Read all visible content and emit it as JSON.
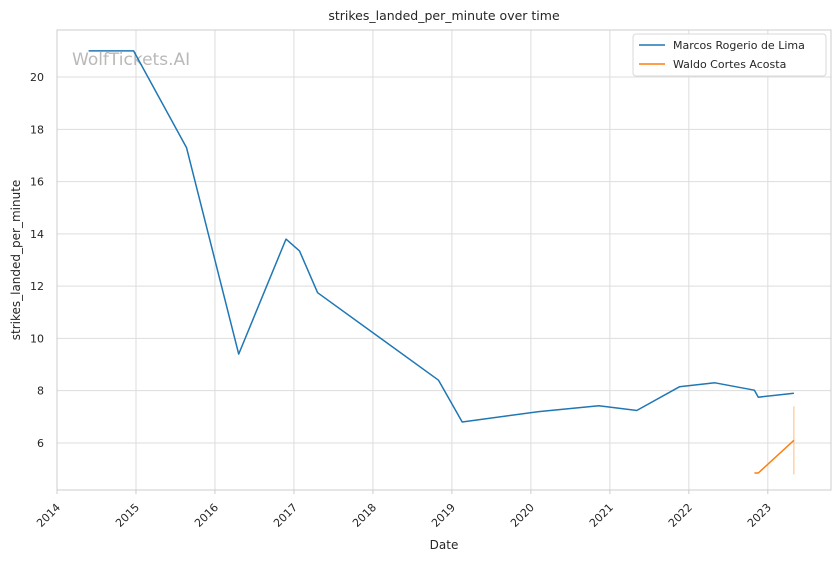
{
  "chart_data": {
    "type": "line",
    "title": "strikes_landed_per_minute over time",
    "xlabel": "Date",
    "ylabel": "strikes_landed_per_minute",
    "watermark": "WolfTickets.AI",
    "xlim": [
      2014.0,
      2023.8
    ],
    "ylim": [
      4.2,
      21.8
    ],
    "x_ticks": [
      {
        "value": 2014,
        "label": "2014"
      },
      {
        "value": 2015,
        "label": "2015"
      },
      {
        "value": 2016,
        "label": "2016"
      },
      {
        "value": 2017,
        "label": "2017"
      },
      {
        "value": 2018,
        "label": "2018"
      },
      {
        "value": 2019,
        "label": "2019"
      },
      {
        "value": 2020,
        "label": "2020"
      },
      {
        "value": 2021,
        "label": "2021"
      },
      {
        "value": 2022,
        "label": "2022"
      },
      {
        "value": 2023,
        "label": "2023"
      }
    ],
    "y_ticks": [
      {
        "value": 6,
        "label": "6"
      },
      {
        "value": 8,
        "label": "8"
      },
      {
        "value": 10,
        "label": "10"
      },
      {
        "value": 12,
        "label": "12"
      },
      {
        "value": 14,
        "label": "14"
      },
      {
        "value": 16,
        "label": "16"
      },
      {
        "value": 18,
        "label": "18"
      },
      {
        "value": 20,
        "label": "20"
      }
    ],
    "grid": true,
    "legend_position": "top-right",
    "series": [
      {
        "name": "Marcos Rogerio de Lima",
        "color": "#1f77b4",
        "points": [
          [
            2014.4,
            21.0
          ],
          [
            2014.97,
            21.0
          ],
          [
            2015.64,
            17.3
          ],
          [
            2016.3,
            9.4
          ],
          [
            2016.9,
            13.8
          ],
          [
            2017.07,
            13.35
          ],
          [
            2017.3,
            11.75
          ],
          [
            2018.83,
            8.4
          ],
          [
            2019.13,
            6.8
          ],
          [
            2020.1,
            7.2
          ],
          [
            2020.86,
            7.42
          ],
          [
            2021.34,
            7.24
          ],
          [
            2021.88,
            8.15
          ],
          [
            2022.33,
            8.3
          ],
          [
            2022.83,
            8.02
          ],
          [
            2022.88,
            7.75
          ],
          [
            2023.33,
            7.9
          ]
        ]
      },
      {
        "name": "Waldo Cortes Acosta",
        "color": "#ff7f0e",
        "points": [
          [
            2022.83,
            4.85
          ],
          [
            2022.88,
            4.85
          ],
          [
            2023.33,
            6.1
          ]
        ]
      }
    ],
    "error_bars": [
      {
        "color": "#ffbb78",
        "x": 2023.33,
        "low": 4.8,
        "high": 7.4
      }
    ]
  }
}
